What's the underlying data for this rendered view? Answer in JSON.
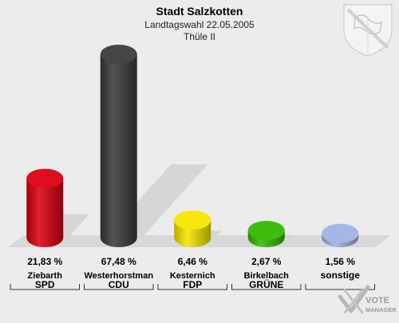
{
  "header": {
    "title": "Stadt Salzkotten",
    "subtitle": "Landtagswahl 22.05.2005",
    "district": "Thüle II"
  },
  "watermark": {
    "line1": "VOTE",
    "line2": "MANAGER"
  },
  "chart_data": {
    "type": "bar",
    "title": "Stadt Salzkotten",
    "subtitle": "Landtagswahl 22.05.2005",
    "ylim": [
      0,
      70
    ],
    "grid": false,
    "legend": "none",
    "categories": [
      "SPD",
      "CDU",
      "FDP",
      "GRÜNE",
      "sonstige"
    ],
    "candidates": [
      "Ziebarth",
      "Westerhorstman",
      "Kesternich",
      "Birkelbach",
      ""
    ],
    "values": [
      21.83,
      67.48,
      6.46,
      2.67,
      1.56
    ],
    "value_labels": [
      "21,83 %",
      "67,48 %",
      "6,46 %",
      "2,67 %",
      "1,56 %"
    ],
    "colors": [
      "#dd0011",
      "#3b3b3b",
      "#f6e600",
      "#33bb00",
      "#a0b2e6"
    ]
  }
}
